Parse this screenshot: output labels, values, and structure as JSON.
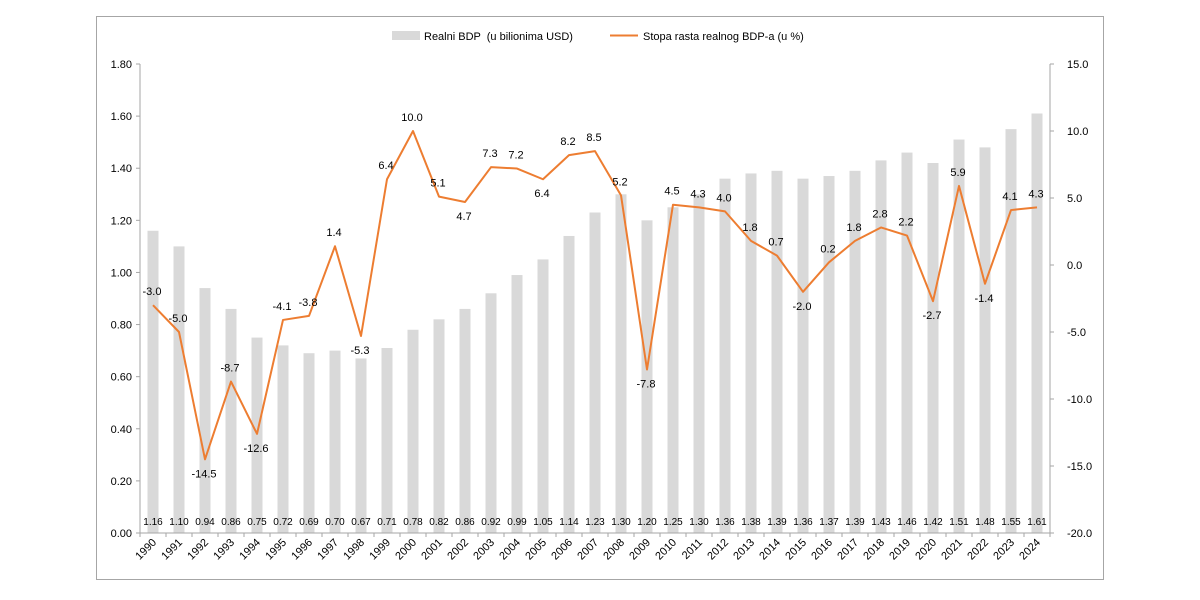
{
  "chart_data": {
    "type": "bar",
    "categories": [
      "1990",
      "1991",
      "1992",
      "1993",
      "1994",
      "1995",
      "1996",
      "1997",
      "1998",
      "1999",
      "2000",
      "2001",
      "2002",
      "2003",
      "2004",
      "2005",
      "2006",
      "2007",
      "2008",
      "2009",
      "2010",
      "2011",
      "2012",
      "2013",
      "2014",
      "2015",
      "2016",
      "2017",
      "2018",
      "2019",
      "2020",
      "2021",
      "2022",
      "2023",
      "2024"
    ],
    "series": [
      {
        "name": "Realni BDP  (u bilionima USD)",
        "type": "bar",
        "axis": "left",
        "color": "#d9d9d9",
        "values": [
          1.16,
          1.1,
          0.94,
          0.86,
          0.75,
          0.72,
          0.69,
          0.7,
          0.67,
          0.71,
          0.78,
          0.82,
          0.86,
          0.92,
          0.99,
          1.05,
          1.14,
          1.23,
          1.3,
          1.2,
          1.25,
          1.3,
          1.36,
          1.38,
          1.39,
          1.36,
          1.37,
          1.39,
          1.43,
          1.46,
          1.42,
          1.51,
          1.48,
          1.55,
          1.61
        ],
        "labels": [
          "1.16",
          "1.10",
          "0.94",
          "0.86",
          "0.75",
          "0.72",
          "0.69",
          "0.70",
          "0.67",
          "0.71",
          "0.78",
          "0.82",
          "0.86",
          "0.92",
          "0.99",
          "1.05",
          "1.14",
          "1.23",
          "1.30",
          "1.20",
          "1.25",
          "1.30",
          "1.36",
          "1.38",
          "1.39",
          "1.36",
          "1.37",
          "1.39",
          "1.43",
          "1.46",
          "1.42",
          "1.51",
          "1.48",
          "1.55",
          "1.61"
        ]
      },
      {
        "name": "Stopa rasta realnog BDP-a (u %)",
        "type": "line",
        "axis": "right",
        "color": "#ed7d31",
        "values": [
          -3.0,
          -5.0,
          -14.5,
          -8.7,
          -12.6,
          -4.1,
          -3.8,
          1.4,
          -5.3,
          6.4,
          10.0,
          5.1,
          4.7,
          7.3,
          7.2,
          6.4,
          8.2,
          8.5,
          5.2,
          -7.8,
          4.5,
          4.3,
          4.0,
          1.8,
          0.7,
          -2.0,
          0.2,
          1.8,
          2.8,
          2.2,
          -2.7,
          5.9,
          -1.4,
          4.1,
          4.3
        ],
        "labels": [
          "-3.0",
          "-5.0",
          "-14.5",
          "-8.7",
          "-12.6",
          "-4.1",
          "-3.8",
          "1.4",
          "-5.3",
          "6.4",
          "10.0",
          "5.1",
          "4.7",
          "7.3",
          "7.2",
          "6.4",
          "8.2",
          "8.5",
          "5.2",
          "-7.8",
          "4.5",
          "4.3",
          "4.0",
          "1.8",
          "0.7",
          "-2.0",
          "0.2",
          "1.8",
          "2.8",
          "2.2",
          "-2.7",
          "5.9",
          "-1.4",
          "4.1",
          "4.3"
        ]
      }
    ],
    "y_left": {
      "ylim": [
        0,
        1.8
      ],
      "ticks": [
        "0.00",
        "0.20",
        "0.40",
        "0.60",
        "0.80",
        "1.00",
        "1.20",
        "1.40",
        "1.60",
        "1.80"
      ]
    },
    "y_right": {
      "ylim": [
        -20,
        15
      ],
      "ticks": [
        "-20.0",
        "-15.0",
        "-10.0",
        "-5.0",
        "0.0",
        "5.0",
        "10.0",
        "15.0"
      ]
    },
    "legend_position": "top",
    "grid": false
  }
}
